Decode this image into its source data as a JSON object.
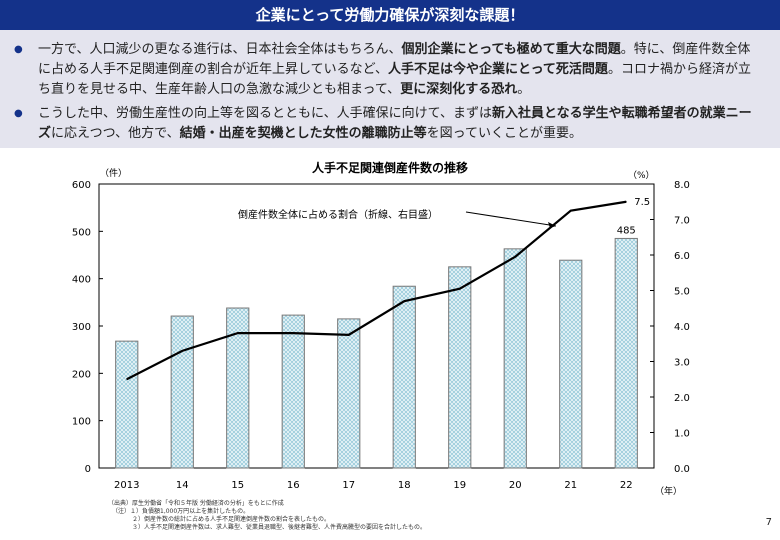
{
  "header": {
    "title": "企業にとって労働力確保が深刻な課題！"
  },
  "bullets": [
    {
      "parts": [
        {
          "t": "一方で、人口減少の更なる進行は、日本社会全体はもちろん、",
          "b": false
        },
        {
          "t": "個別企業にとっても極めて重大な問題",
          "b": true
        },
        {
          "t": "。特に、倒産件数全体に占める人手不足関連倒産の割合が近年上昇しているなど、",
          "b": false
        },
        {
          "t": "人手不足は今や企業にとって死活問題",
          "b": true
        },
        {
          "t": "。コロナ禍から経済が立ち直りを見せる中、生産年齢人口の急激な減少とも相まって、",
          "b": false
        },
        {
          "t": "更に深刻化する恐れ",
          "b": true
        },
        {
          "t": "。",
          "b": false
        }
      ]
    },
    {
      "parts": [
        {
          "t": "こうした中、労働生産性の向上等を図るとともに、人手確保に向けて、まずは",
          "b": false
        },
        {
          "t": "新入社員となる学生や転職希望者の就業ニーズ",
          "b": true
        },
        {
          "t": "に応えつつ、他方で、",
          "b": false
        },
        {
          "t": "結婚・出産を契機とした女性の離職防止等",
          "b": true
        },
        {
          "t": "を図っていくことが重要。",
          "b": false
        }
      ]
    }
  ],
  "chart_data": {
    "type": "bar+line",
    "title": "人手不足関連倒産件数の推移",
    "categories": [
      "2013",
      "14",
      "15",
      "16",
      "17",
      "18",
      "19",
      "20",
      "21",
      "22"
    ],
    "xlabel": "（年）",
    "ylabel_left": "（件）",
    "ylabel_right": "（%）",
    "ylim_left": [
      0,
      600
    ],
    "yticks_left": [
      "0",
      "100",
      "200",
      "300",
      "400",
      "500",
      "600"
    ],
    "ylim_right": [
      0,
      8
    ],
    "yticks_right": [
      "0.0",
      "1.0",
      "2.0",
      "3.0",
      "4.0",
      "5.0",
      "6.0",
      "7.0",
      "8.0"
    ],
    "series": [
      {
        "name": "人手不足関連倒産件数",
        "type": "bar",
        "values": [
          268,
          321,
          338,
          323,
          315,
          384,
          425,
          463,
          439,
          485
        ]
      },
      {
        "name": "倒産件数全体に占める割合（折線、右目盛）",
        "type": "line",
        "axis": "right",
        "values": [
          2.5,
          3.3,
          3.8,
          3.8,
          3.75,
          4.7,
          5.05,
          5.95,
          7.25,
          7.5
        ]
      }
    ],
    "data_labels": {
      "bar_last": "485",
      "line_last": "7.5"
    },
    "annotation": "倒産件数全体に占める割合（折線、右目盛）",
    "colors": {
      "bar": "#cfe8f0",
      "bar_edge": "#777777",
      "line": "#000000"
    }
  },
  "notes": [
    "（出典）厚生労働省「令和５年版 労働経済の分析」をもとに作成",
    "（注）１）負債額1,000万円以上を集計したもの。",
    "２）倒産件数の総計に占める人手不足関連倒産件数の割合を表したもの。",
    "３）人手不足関連倒産件数は、求人難型、従業員退職型、後継者難型、人件費高騰型の要因を合計したもの。"
  ],
  "page_number": "7"
}
